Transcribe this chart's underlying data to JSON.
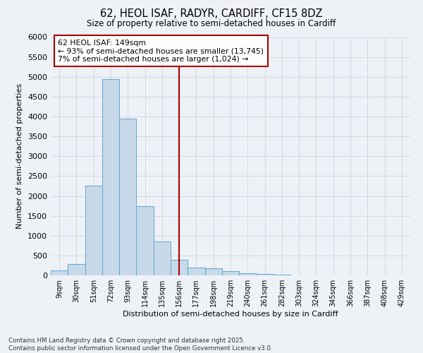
{
  "title1": "62, HEOL ISAF, RADYR, CARDIFF, CF15 8DZ",
  "title2": "Size of property relative to semi-detached houses in Cardiff",
  "xlabel": "Distribution of semi-detached houses by size in Cardiff",
  "ylabel": "Number of semi-detached properties",
  "footnote1": "Contains HM Land Registry data © Crown copyright and database right 2025.",
  "footnote2": "Contains public sector information licensed under the Open Government Licence v3.0.",
  "bar_labels": [
    "9sqm",
    "30sqm",
    "51sqm",
    "72sqm",
    "93sqm",
    "114sqm",
    "135sqm",
    "156sqm",
    "177sqm",
    "198sqm",
    "219sqm",
    "240sqm",
    "261sqm",
    "282sqm",
    "303sqm",
    "324sqm",
    "345sqm",
    "366sqm",
    "387sqm",
    "408sqm",
    "429sqm"
  ],
  "bar_values": [
    120,
    280,
    2250,
    4950,
    3950,
    1750,
    850,
    400,
    200,
    175,
    100,
    55,
    30,
    15,
    5,
    2,
    1,
    1,
    0,
    0,
    0
  ],
  "property_line_x": 7,
  "property_sqm": 149,
  "pct_smaller": 93,
  "n_smaller": 13745,
  "pct_larger": 7,
  "n_larger": 1024,
  "bar_color": "#c8daea",
  "bar_edge_color": "#6aaad4",
  "line_color": "#aa0000",
  "annotation_box_color": "#aa0000",
  "background_color": "#eef2f7",
  "grid_color": "#c8cdd8",
  "ylim": [
    0,
    6000
  ],
  "yticks": [
    0,
    500,
    1000,
    1500,
    2000,
    2500,
    3000,
    3500,
    4000,
    4500,
    5000,
    5500,
    6000
  ]
}
